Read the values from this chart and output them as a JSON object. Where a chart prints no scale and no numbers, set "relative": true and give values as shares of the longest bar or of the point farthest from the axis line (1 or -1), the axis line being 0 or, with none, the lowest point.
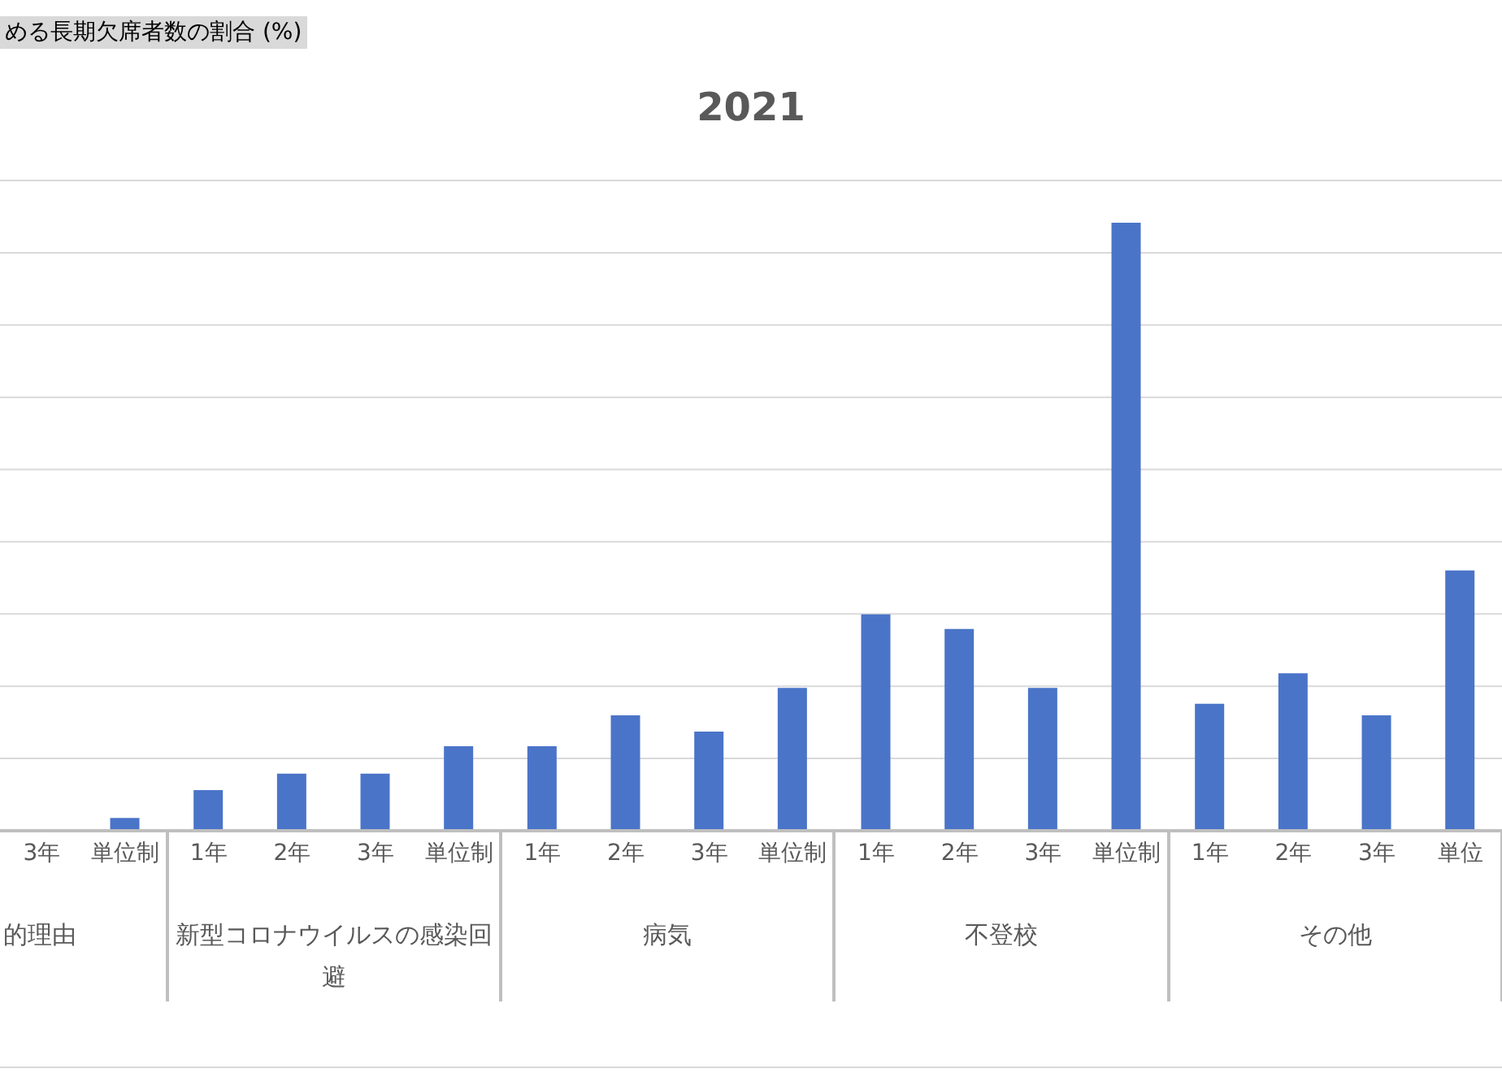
{
  "chart_data": {
    "type": "bar",
    "title": "2021",
    "relative": true,
    "grid": "y",
    "color": "#4a74c8",
    "categories": [
      "3年",
      "単位制",
      "1年",
      "2年",
      "3年",
      "単位制",
      "1年",
      "2年",
      "3年",
      "単位制",
      "1年",
      "2年",
      "3年",
      "単位制",
      "1年",
      "2年",
      "3年",
      "単位"
    ],
    "values": [
      0,
      0.021,
      0.067,
      0.094,
      0.094,
      0.139,
      0.139,
      0.19,
      0.163,
      0.235,
      0.356,
      0.332,
      0.235,
      1,
      0.209,
      0.259,
      0.19,
      0.428
    ],
    "annotations": [
      "める長期欠席者数の割合 (%)",
      "的理由",
      "新型コロナウイルスの感染回避",
      "病気",
      "不登校",
      "その他"
    ]
  }
}
